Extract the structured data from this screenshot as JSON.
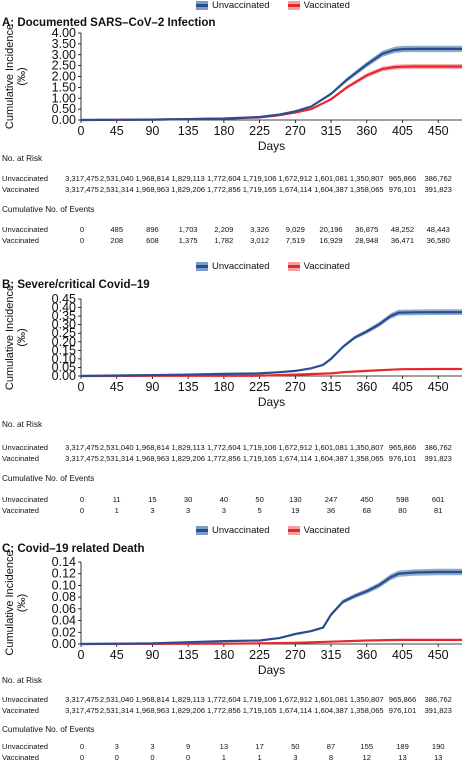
{
  "x_ticks": [
    0,
    45,
    90,
    135,
    180,
    225,
    270,
    315,
    360,
    405,
    450
  ],
  "xlabel": "Days",
  "ylabel": "Cumulative Incidence (‰)",
  "legend": {
    "unvaccinated": "Unvaccinated",
    "vaccinated": "Vaccinated"
  },
  "colors": {
    "unvaccinated": "#2a4d8f",
    "unvaccinated_band": "#7a9cc6",
    "vaccinated": "#e8262b",
    "vaccinated_band": "#f2a0a2"
  },
  "risk_header": "No. at Risk",
  "events_header": "Cumulative No. of Events",
  "risk_columns_days": [
    0,
    45,
    90,
    135,
    180,
    225,
    270,
    315,
    360,
    405,
    450
  ],
  "panels": [
    {
      "title": "A: Documented SARS–CoV–2 Infection",
      "y_tick_labels": [
        "0.00",
        "0.50",
        "1.00",
        "1.50",
        "2.00",
        "2.50",
        "3.00",
        "3.50",
        "4.00"
      ],
      "at_risk": {
        "unvaccinated": [
          "3,317,475",
          "2,531,040",
          "1,968,814",
          "1,829,113",
          "1,772,604",
          "1,719,106",
          "1,672,912",
          "1,601,081",
          "1,350,807",
          "965,866",
          "386,762"
        ],
        "vaccinated": [
          "3,317,475",
          "2,531,314",
          "1,968,963",
          "1,829,206",
          "1,772,856",
          "1,719,165",
          "1,674,114",
          "1,604,387",
          "1,358,065",
          "976,101",
          "391,823"
        ]
      },
      "events": {
        "unvaccinated": [
          "0",
          "485",
          "896",
          "1,703",
          "2,209",
          "3,326",
          "9,029",
          "20,196",
          "36,875",
          "48,252",
          "48,443"
        ],
        "vaccinated": [
          "0",
          "208",
          "608",
          "1,375",
          "1,782",
          "3,012",
          "7,519",
          "16,929",
          "28,948",
          "36,471",
          "36,580"
        ]
      }
    },
    {
      "title": "B: Severe/critical Covid–19",
      "y_tick_labels": [
        "0.00",
        "0.05",
        "0.10",
        "0.15",
        "0.20",
        "0.25",
        "0.30",
        "0.35",
        "0.40",
        "0.45"
      ],
      "at_risk": {
        "unvaccinated": [
          "3,317,475",
          "2,531,040",
          "1,968,814",
          "1,829,113",
          "1,772,604",
          "1,719,106",
          "1,672,912",
          "1,601,081",
          "1,350,807",
          "965,866",
          "386,762"
        ],
        "vaccinated": [
          "3,317,475",
          "2,531,314",
          "1,968,963",
          "1,829,206",
          "1,772,856",
          "1,719,165",
          "1,674,114",
          "1,604,387",
          "1,358,065",
          "976,101",
          "391,823"
        ]
      },
      "events": {
        "unvaccinated": [
          "0",
          "11",
          "15",
          "30",
          "40",
          "50",
          "130",
          "247",
          "450",
          "598",
          "601"
        ],
        "vaccinated": [
          "0",
          "1",
          "3",
          "3",
          "3",
          "5",
          "19",
          "36",
          "68",
          "80",
          "81"
        ]
      }
    },
    {
      "title": "C: Covid–19 related Death",
      "y_tick_labels": [
        "0.00",
        "0.02",
        "0.04",
        "0.06",
        "0.08",
        "0.10",
        "0.12",
        "0.14"
      ],
      "at_risk": {
        "unvaccinated": [
          "3,317,475",
          "2,531,040",
          "1,968,814",
          "1,829,113",
          "1,772,604",
          "1,719,106",
          "1,672,912",
          "1,601,081",
          "1,350,807",
          "965,866",
          "386,762"
        ],
        "vaccinated": [
          "3,317,475",
          "2,531,314",
          "1,968,963",
          "1,829,206",
          "1,772,856",
          "1,719,165",
          "1,674,114",
          "1,604,387",
          "1,358,065",
          "976,101",
          "391,823"
        ]
      },
      "events": {
        "unvaccinated": [
          "0",
          "3",
          "3",
          "9",
          "13",
          "17",
          "50",
          "87",
          "155",
          "189",
          "190"
        ],
        "vaccinated": [
          "0",
          "0",
          "0",
          "0",
          "1",
          "1",
          "3",
          "8",
          "12",
          "13",
          "13"
        ]
      }
    }
  ],
  "chart_data": [
    {
      "type": "line",
      "title": "A: Documented SARS–CoV–2 Infection",
      "xlabel": "Days",
      "ylabel": "Cumulative Incidence (‰)",
      "xlim": [
        0,
        480
      ],
      "ylim": [
        0,
        4.0
      ],
      "grid": false,
      "legend_position": "top-right",
      "series": [
        {
          "name": "Unvaccinated",
          "x": [
            0,
            45,
            90,
            135,
            180,
            225,
            250,
            270,
            290,
            315,
            335,
            360,
            380,
            395,
            405,
            420,
            450,
            480
          ],
          "y": [
            0,
            0.01,
            0.02,
            0.04,
            0.07,
            0.14,
            0.25,
            0.4,
            0.62,
            1.2,
            1.85,
            2.55,
            3.05,
            3.22,
            3.26,
            3.27,
            3.27,
            3.27
          ]
        },
        {
          "name": "Vaccinated",
          "x": [
            0,
            45,
            90,
            135,
            180,
            225,
            250,
            270,
            290,
            315,
            335,
            360,
            380,
            395,
            405,
            420,
            450,
            480
          ],
          "y": [
            0,
            0.01,
            0.02,
            0.04,
            0.06,
            0.12,
            0.22,
            0.34,
            0.5,
            0.95,
            1.5,
            2.05,
            2.35,
            2.43,
            2.45,
            2.46,
            2.46,
            2.46
          ]
        }
      ]
    },
    {
      "type": "line",
      "title": "B: Severe/critical Covid–19",
      "xlabel": "Days",
      "ylabel": "Cumulative Incidence (‰)",
      "xlim": [
        0,
        480
      ],
      "ylim": [
        0,
        0.45
      ],
      "grid": false,
      "legend_position": "top-right",
      "series": [
        {
          "name": "Unvaccinated",
          "x": [
            0,
            45,
            90,
            135,
            180,
            225,
            250,
            270,
            290,
            305,
            315,
            330,
            345,
            360,
            375,
            390,
            400,
            420,
            450,
            480
          ],
          "y": [
            0,
            0.003,
            0.005,
            0.008,
            0.012,
            0.015,
            0.022,
            0.03,
            0.045,
            0.065,
            0.1,
            0.17,
            0.225,
            0.26,
            0.3,
            0.35,
            0.37,
            0.372,
            0.373,
            0.373
          ]
        },
        {
          "name": "Vaccinated",
          "x": [
            0,
            90,
            180,
            225,
            270,
            315,
            330,
            360,
            390,
            405,
            450,
            480
          ],
          "y": [
            0,
            0.001,
            0.001,
            0.002,
            0.008,
            0.015,
            0.022,
            0.03,
            0.037,
            0.04,
            0.041,
            0.041
          ]
        }
      ]
    },
    {
      "type": "line",
      "title": "C: Covid–19 related Death",
      "xlabel": "Days",
      "ylabel": "Cumulative Incidence (‰)",
      "xlim": [
        0,
        480
      ],
      "ylim": [
        0,
        0.14
      ],
      "grid": false,
      "legend_position": "top-right",
      "series": [
        {
          "name": "Unvaccinated",
          "x": [
            0,
            90,
            135,
            180,
            225,
            250,
            270,
            290,
            305,
            315,
            330,
            345,
            360,
            375,
            390,
            400,
            420,
            450,
            480
          ],
          "y": [
            0,
            0.001,
            0.003,
            0.005,
            0.006,
            0.01,
            0.017,
            0.022,
            0.028,
            0.05,
            0.072,
            0.082,
            0.09,
            0.1,
            0.114,
            0.12,
            0.122,
            0.123,
            0.123
          ]
        },
        {
          "name": "Vaccinated",
          "x": [
            0,
            180,
            225,
            270,
            315,
            360,
            405,
            450,
            480
          ],
          "y": [
            0,
            0.0005,
            0.001,
            0.002,
            0.004,
            0.006,
            0.007,
            0.007,
            0.007
          ]
        }
      ]
    }
  ]
}
